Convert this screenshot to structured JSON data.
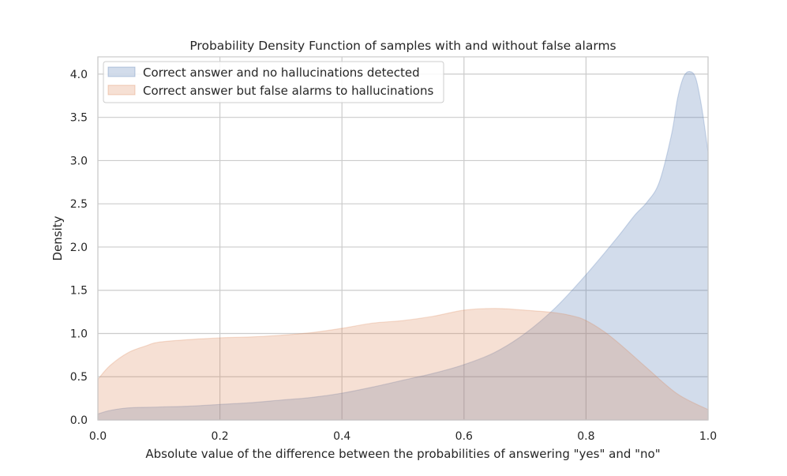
{
  "chart_data": {
    "type": "area",
    "title": "Probability Density Function of samples with and without false alarms",
    "xlabel": "Absolute value of the difference between the probabilities of answering \"yes\" and \"no\"",
    "ylabel": "Density",
    "xlim": [
      0.0,
      1.0
    ],
    "ylim": [
      0.0,
      4.2
    ],
    "grid": true,
    "legend_position": "top-left",
    "x_ticks": [
      "0.0",
      "0.2",
      "0.4",
      "0.6",
      "0.8",
      "1.0"
    ],
    "y_ticks": [
      "0.0",
      "0.5",
      "1.0",
      "1.5",
      "2.0",
      "2.5",
      "3.0",
      "3.5",
      "4.0"
    ],
    "x_tick_values": [
      0.0,
      0.2,
      0.4,
      0.6,
      0.8,
      1.0
    ],
    "y_tick_values": [
      0.0,
      0.5,
      1.0,
      1.5,
      2.0,
      2.5,
      3.0,
      3.5,
      4.0
    ],
    "series": [
      {
        "name": "Correct answer and no hallucinations detected",
        "color": "#4c72b0",
        "x": [
          0.0,
          0.02,
          0.05,
          0.1,
          0.15,
          0.2,
          0.25,
          0.3,
          0.35,
          0.4,
          0.45,
          0.5,
          0.55,
          0.6,
          0.65,
          0.7,
          0.75,
          0.8,
          0.85,
          0.88,
          0.9,
          0.92,
          0.94,
          0.95,
          0.96,
          0.97,
          0.98,
          0.99,
          1.0
        ],
        "y": [
          0.07,
          0.11,
          0.14,
          0.15,
          0.16,
          0.18,
          0.2,
          0.23,
          0.26,
          0.31,
          0.38,
          0.46,
          0.54,
          0.64,
          0.78,
          1.0,
          1.3,
          1.68,
          2.1,
          2.37,
          2.52,
          2.75,
          3.3,
          3.72,
          3.97,
          4.03,
          3.95,
          3.6,
          3.1
        ]
      },
      {
        "name": "Correct answer but false alarms to hallucinations",
        "color": "#dd8452",
        "x": [
          0.0,
          0.02,
          0.05,
          0.08,
          0.1,
          0.15,
          0.2,
          0.25,
          0.3,
          0.35,
          0.4,
          0.45,
          0.5,
          0.55,
          0.6,
          0.65,
          0.7,
          0.75,
          0.78,
          0.8,
          0.83,
          0.86,
          0.9,
          0.95,
          1.0
        ],
        "y": [
          0.47,
          0.63,
          0.78,
          0.86,
          0.9,
          0.93,
          0.95,
          0.96,
          0.98,
          1.01,
          1.06,
          1.12,
          1.15,
          1.2,
          1.27,
          1.29,
          1.27,
          1.24,
          1.2,
          1.15,
          1.02,
          0.85,
          0.6,
          0.3,
          0.12
        ]
      }
    ]
  }
}
